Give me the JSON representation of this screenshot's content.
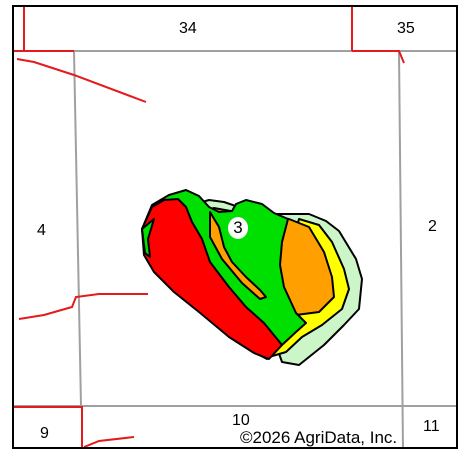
{
  "map": {
    "section_labels": {
      "north_left": "34",
      "north_right": "35",
      "west": "4",
      "east": "2",
      "south_left": "9",
      "south_middle": "10",
      "south_right": "11"
    },
    "field_label": "3",
    "copyright": "©2026 AgriData, Inc.",
    "colors": {
      "section_line": "#a0a0a0",
      "road": "#e41a1c",
      "zone_red": "#ff0000",
      "zone_green": "#00e000",
      "zone_orange": "#ffa000",
      "zone_yellow": "#ffff00",
      "zone_pale_green": "#ccf5c8",
      "outline": "#000000"
    }
  }
}
